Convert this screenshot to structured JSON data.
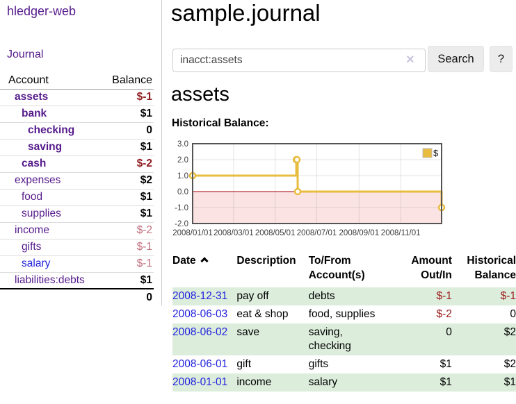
{
  "app": {
    "title": "hledger-web",
    "nav_journal": "Journal"
  },
  "sidebar": {
    "col_account": "Account",
    "col_balance": "Balance",
    "rows": [
      {
        "name": "assets",
        "balance": "$-1"
      },
      {
        "name": "bank",
        "balance": "$1"
      },
      {
        "name": "checking",
        "balance": "0"
      },
      {
        "name": "saving",
        "balance": "$1"
      },
      {
        "name": "cash",
        "balance": "$-2"
      },
      {
        "name": "expenses",
        "balance": "$2"
      },
      {
        "name": "food",
        "balance": "$1"
      },
      {
        "name": "supplies",
        "balance": "$1"
      },
      {
        "name": "income",
        "balance": "$-2"
      },
      {
        "name": "gifts",
        "balance": "$-1"
      },
      {
        "name": "salary",
        "balance": "$-1"
      },
      {
        "name": "liabilities:debts",
        "balance": "$1"
      }
    ],
    "total": "0"
  },
  "main": {
    "title": "sample.journal",
    "search": {
      "value": "inacct:assets",
      "clear": "×",
      "button": "Search",
      "help": "?"
    },
    "heading": "assets",
    "chart_title": "Historical Balance:"
  },
  "chart_data": {
    "type": "line",
    "title": "Historical Balance:",
    "series": [
      {
        "name": "$",
        "color": "#e8bc3f",
        "steps": true,
        "points": [
          [
            "2008-01-01",
            1
          ],
          [
            "2008-06-01",
            2
          ],
          [
            "2008-06-02",
            2
          ],
          [
            "2008-06-03",
            0
          ],
          [
            "2008-12-31",
            -1
          ]
        ]
      }
    ],
    "xrange": [
      "2008-01-01",
      "2008-12-31"
    ],
    "ylim": [
      -2,
      3
    ],
    "yticks": [
      3,
      2,
      1,
      0,
      -1,
      -2
    ],
    "xticks": [
      "2008/01/01",
      "2008/03/01",
      "2008/05/01",
      "2008/07/01",
      "2008/09/01",
      "2008/11/01"
    ],
    "grid": true,
    "legend_position": "top-right",
    "negative_region_fill": "#fbe3e3",
    "zero_line_color": "#a80000",
    "border_color": "#545454"
  },
  "register": {
    "headers": {
      "date": "Date",
      "description": "Description",
      "accounts": "To/From Account(s)",
      "amount": "Amount Out/In",
      "balance": "Historical Balance"
    },
    "rows": [
      {
        "date": "2008-12-31",
        "description": "pay off",
        "accounts": "debts",
        "amount": "$-1",
        "balance": "$-1"
      },
      {
        "date": "2008-06-03",
        "description": "eat & shop",
        "accounts": "food, supplies",
        "amount": "$-2",
        "balance": "0"
      },
      {
        "date": "2008-06-02",
        "description": "save",
        "accounts": "saving,\nchecking",
        "amount": "0",
        "balance": "$2"
      },
      {
        "date": "2008-06-01",
        "description": "gift",
        "accounts": "gifts",
        "amount": "$1",
        "balance": "$2"
      },
      {
        "date": "2008-01-01",
        "description": "income",
        "accounts": "salary",
        "amount": "$1",
        "balance": "$1"
      }
    ]
  }
}
